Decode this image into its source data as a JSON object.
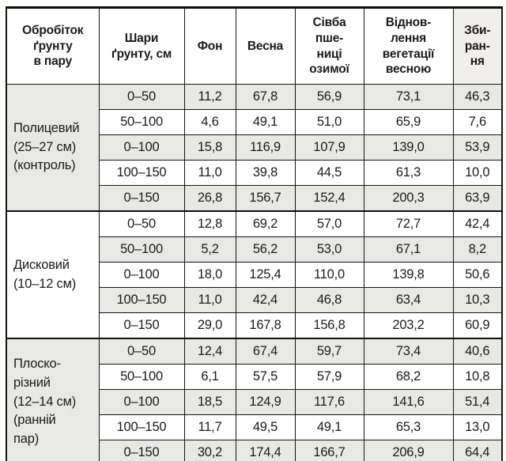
{
  "table": {
    "header": {
      "columns": [
        {
          "label": "Обробіток\nґрунту\nв пару"
        },
        {
          "label": "Шари\nґрунту, см"
        },
        {
          "label": "Фон"
        },
        {
          "label": "Весна"
        },
        {
          "label": "Сівба\nпше-\nниці\nозимої"
        },
        {
          "label": "Віднов-\nлення\nвегетації\nвесною"
        },
        {
          "label": "Зби-\nран-\nня"
        }
      ]
    },
    "groups": [
      {
        "label": "Полицевий\n(25–27 см)\n(контроль)",
        "rows": [
          {
            "layer": "0–50",
            "values": [
              "11,2",
              "67,8",
              "56,9",
              "73,1",
              "46,3"
            ]
          },
          {
            "layer": "50–100",
            "values": [
              "4,6",
              "49,1",
              "51,0",
              "65,9",
              "7,6"
            ]
          },
          {
            "layer": "0–100",
            "values": [
              "15,8",
              "116,9",
              "107,9",
              "139,0",
              "53,9"
            ]
          },
          {
            "layer": "100–150",
            "values": [
              "11,0",
              "39,8",
              "44,5",
              "61,3",
              "10,0"
            ]
          },
          {
            "layer": "0–150",
            "values": [
              "26,8",
              "156,7",
              "152,4",
              "200,3",
              "63,9"
            ]
          }
        ]
      },
      {
        "label": "Дисковий\n(10–12 см)",
        "rows": [
          {
            "layer": "0–50",
            "values": [
              "12,8",
              "69,2",
              "57,0",
              "72,7",
              "42,4"
            ]
          },
          {
            "layer": "50–100",
            "values": [
              "5,2",
              "56,2",
              "53,0",
              "67,1",
              "8,2"
            ]
          },
          {
            "layer": "0–100",
            "values": [
              "18,0",
              "125,4",
              "110,0",
              "139,8",
              "50,6"
            ]
          },
          {
            "layer": "100–150",
            "values": [
              "11,0",
              "42,4",
              "46,8",
              "63,4",
              "10,3"
            ]
          },
          {
            "layer": "0–150",
            "values": [
              "29,0",
              "167,8",
              "156,8",
              "203,2",
              "60,9"
            ]
          }
        ]
      },
      {
        "label": "Плоско-\nрізний\n(12–14 см)\n(ранній\nпар)",
        "rows": [
          {
            "layer": "0–50",
            "values": [
              "12,4",
              "67,4",
              "59,7",
              "73,4",
              "40,6"
            ]
          },
          {
            "layer": "50–100",
            "values": [
              "6,1",
              "57,5",
              "57,9",
              "68,2",
              "10,8"
            ]
          },
          {
            "layer": "0–100",
            "values": [
              "18,5",
              "124,9",
              "117,6",
              "141,6",
              "51,4"
            ]
          },
          {
            "layer": "100–150",
            "values": [
              "11,7",
              "49,5",
              "49,1",
              "65,3",
              "13,0"
            ]
          },
          {
            "layer": "0–150",
            "values": [
              "30,2",
              "174,4",
              "166,7",
              "206,9",
              "64,4"
            ]
          }
        ]
      }
    ]
  },
  "colors": {
    "row_shade": "#e8e8e5",
    "row_bg": "#ffffff",
    "harvest_header_shade": "#f0efec",
    "border": "#161616",
    "text": "#1b1b1b",
    "page_bg": "#fdfdfc"
  }
}
